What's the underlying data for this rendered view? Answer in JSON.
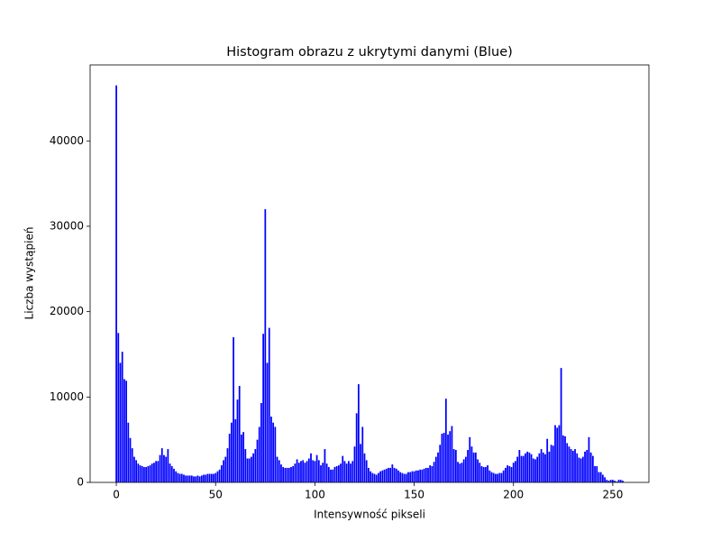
{
  "chart_data": {
    "type": "bar",
    "title": "Histogram obrazu z ukrytymi danymi (Blue)",
    "x_label": "Intensywność pikseli",
    "y_label": "Liczba wystąpień",
    "color": "#0000ff",
    "x": [
      0,
      1,
      2,
      3,
      4,
      5,
      6,
      7,
      8,
      9,
      10,
      11,
      12,
      13,
      14,
      15,
      16,
      17,
      18,
      19,
      20,
      21,
      22,
      23,
      24,
      25,
      26,
      27,
      28,
      29,
      30,
      31,
      32,
      33,
      34,
      35,
      36,
      37,
      38,
      39,
      40,
      41,
      42,
      43,
      44,
      45,
      46,
      47,
      48,
      49,
      50,
      51,
      52,
      53,
      54,
      55,
      56,
      57,
      58,
      59,
      60,
      61,
      62,
      63,
      64,
      65,
      66,
      67,
      68,
      69,
      70,
      71,
      72,
      73,
      74,
      75,
      76,
      77,
      78,
      79,
      80,
      81,
      82,
      83,
      84,
      85,
      86,
      87,
      88,
      89,
      90,
      91,
      92,
      93,
      94,
      95,
      96,
      97,
      98,
      99,
      100,
      101,
      102,
      103,
      104,
      105,
      106,
      107,
      108,
      109,
      110,
      111,
      112,
      113,
      114,
      115,
      116,
      117,
      118,
      119,
      120,
      121,
      122,
      123,
      124,
      125,
      126,
      127,
      128,
      129,
      130,
      131,
      132,
      133,
      134,
      135,
      136,
      137,
      138,
      139,
      140,
      141,
      142,
      143,
      144,
      145,
      146,
      147,
      148,
      149,
      150,
      151,
      152,
      153,
      154,
      155,
      156,
      157,
      158,
      159,
      160,
      161,
      162,
      163,
      164,
      165,
      166,
      167,
      168,
      169,
      170,
      171,
      172,
      173,
      174,
      175,
      176,
      177,
      178,
      179,
      180,
      181,
      182,
      183,
      184,
      185,
      186,
      187,
      188,
      189,
      190,
      191,
      192,
      193,
      194,
      195,
      196,
      197,
      198,
      199,
      200,
      201,
      202,
      203,
      204,
      205,
      206,
      207,
      208,
      209,
      210,
      211,
      212,
      213,
      214,
      215,
      216,
      217,
      218,
      219,
      220,
      221,
      222,
      223,
      224,
      225,
      226,
      227,
      228,
      229,
      230,
      231,
      232,
      233,
      234,
      235,
      236,
      237,
      238,
      239,
      240,
      241,
      242,
      243,
      244,
      245,
      246,
      247,
      248,
      249,
      250,
      251,
      252,
      253,
      254,
      255
    ],
    "values": [
      46500,
      17500,
      14000,
      15300,
      12100,
      11900,
      7000,
      5200,
      4000,
      3000,
      2600,
      2200,
      2000,
      1900,
      1800,
      1800,
      1900,
      2000,
      2200,
      2300,
      2500,
      2500,
      3200,
      4000,
      3200,
      3000,
      3900,
      2200,
      1900,
      1600,
      1300,
      1100,
      1000,
      1000,
      900,
      800,
      800,
      800,
      800,
      700,
      700,
      800,
      700,
      800,
      900,
      900,
      1000,
      1000,
      1000,
      1000,
      1100,
      1300,
      1500,
      2000,
      2600,
      3000,
      4000,
      5700,
      7000,
      17000,
      7400,
      9700,
      11300,
      5600,
      5900,
      3900,
      2800,
      2800,
      3000,
      3400,
      3900,
      5000,
      6500,
      9300,
      17400,
      32000,
      14000,
      18100,
      7700,
      7000,
      6500,
      3000,
      2600,
      2100,
      1800,
      1700,
      1700,
      1700,
      1800,
      1900,
      2200,
      2700,
      2300,
      2500,
      2600,
      2300,
      2500,
      2800,
      3400,
      2600,
      2500,
      3200,
      2600,
      2000,
      2300,
      3900,
      2200,
      1800,
      1500,
      1500,
      1800,
      1900,
      2000,
      2200,
      3100,
      2500,
      2200,
      2500,
      2200,
      2500,
      4200,
      8100,
      11500,
      4500,
      6500,
      3400,
      2600,
      1700,
      1300,
      1100,
      1000,
      900,
      1100,
      1300,
      1400,
      1500,
      1600,
      1700,
      1700,
      2100,
      1700,
      1600,
      1400,
      1200,
      1100,
      1000,
      1000,
      1200,
      1200,
      1300,
      1300,
      1400,
      1400,
      1500,
      1500,
      1600,
      1700,
      1700,
      2000,
      1900,
      2400,
      3000,
      3500,
      4400,
      5700,
      5800,
      9800,
      5600,
      6000,
      6600,
      3900,
      3800,
      2400,
      2200,
      2300,
      2700,
      3000,
      3800,
      5300,
      4200,
      3500,
      3500,
      2700,
      2300,
      1900,
      1800,
      1800,
      2000,
      1400,
      1200,
      1100,
      1000,
      1000,
      1100,
      1100,
      1400,
      1700,
      2000,
      1900,
      1800,
      2300,
      2500,
      3000,
      3800,
      3100,
      3100,
      3400,
      3600,
      3500,
      3300,
      2800,
      2700,
      3000,
      3400,
      3900,
      3500,
      3300,
      5100,
      3600,
      4400,
      4300,
      6700,
      6400,
      6700,
      13400,
      5500,
      5400,
      4600,
      4200,
      3900,
      3700,
      3900,
      3400,
      2900,
      2800,
      3000,
      3600,
      3800,
      5300,
      3500,
      3100,
      1900,
      1900,
      1200,
      1200,
      900,
      600,
      300,
      200,
      300,
      300,
      200,
      100,
      300,
      300,
      200
    ],
    "xlim": [
      -13.2,
      268.2
    ],
    "ylim": [
      0,
      48900
    ],
    "xticks": [
      0,
      50,
      100,
      150,
      200,
      250
    ],
    "yticks": [
      0,
      10000,
      20000,
      30000,
      40000
    ]
  }
}
